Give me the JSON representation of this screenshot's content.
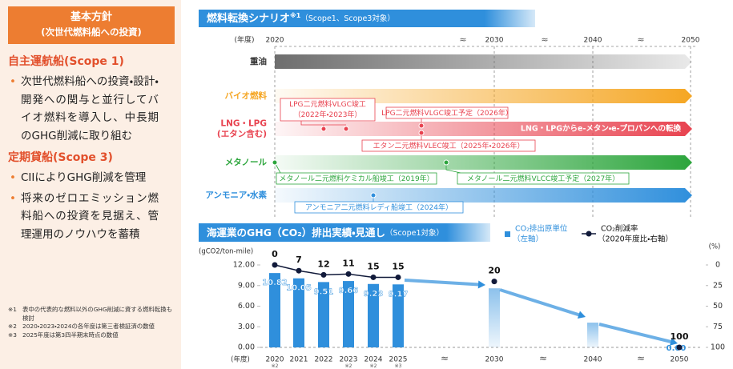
{
  "left": {
    "header": [
      "基本方針",
      "(次世代燃料船への投資)"
    ],
    "sections": [
      {
        "heading": "自主運航船(Scope 1)",
        "bullets": [
          "次世代燃料船への投資・設計・開発への関与と並行してバイオ燃料を導入し、中長期のGHG削減に取り組む"
        ]
      },
      {
        "heading": "定期貸船(Scope 3)",
        "bullets": [
          "CIIによりGHG削減を管理",
          "将来のゼロエミッション燃料船への投資を見据え、管理運用のノウハウを蓄積"
        ]
      }
    ],
    "notes": [
      [
        "※1",
        "表中の代表的な燃料以外のGHG削減に資する燃料転換も検討"
      ],
      [
        "※2",
        "2020・2023・2024の各年度は第三者検証済の数値"
      ],
      [
        "※3",
        "2025年度は第3四半期末時点の数値"
      ]
    ]
  },
  "scenario": {
    "title": "燃料転換シナリオ",
    "title_note": "※1",
    "subtitle": "（Scope1、Scope3対象）",
    "year_label": "(年度)",
    "years": [
      "2020",
      "2030",
      "2040",
      "2050"
    ],
    "rows": [
      {
        "label": [
          "重油"
        ],
        "color": "#6e6e6e"
      },
      {
        "label": [
          "バイオ燃料"
        ],
        "color": "#f5a623"
      },
      {
        "label": [
          "LNG・LPG",
          "(エタン含む)"
        ],
        "color": "#e8424f",
        "arrow_text": "LNG・LPGからe-メタン・e-プロパンへの転換"
      },
      {
        "label": [
          "メタノール"
        ],
        "color": "#2ca53c"
      },
      {
        "label": [
          "アンモニア・水素"
        ],
        "color": "#2f8fdc"
      }
    ],
    "annotations": [
      {
        "text": [
          "LPG二元燃料VLGC竣工",
          "（2022年・2023年）"
        ]
      },
      {
        "text": [
          "LPG二元燃料VLGC竣工予定（2026年）"
        ]
      },
      {
        "text": [
          "エタン二元燃料VLEC竣工（2025年・2026年）"
        ]
      },
      {
        "text": [
          "メタノール二元燃料ケミカル船竣工（2019年）"
        ]
      },
      {
        "text": [
          "メタノール二元燃料VLCC竣工予定（2027年）"
        ]
      },
      {
        "text": [
          "アンモニア二元燃料レディ船竣工（2024年）"
        ]
      }
    ]
  },
  "chart_data": {
    "type": "bar-line",
    "title": "海運業のGHG（CO₂）排出実績・見通し",
    "subtitle": "（Scope1対象）",
    "x_label": "(年度)",
    "y_label": "(gCO2/ton-mile)",
    "y2_label": "(%)",
    "categories": [
      "2020",
      "2021",
      "2022",
      "2023",
      "2024",
      "2025",
      "2030",
      "2040",
      "2050"
    ],
    "x_notes": [
      "※2",
      null,
      null,
      "※2",
      "※2",
      "※3",
      null,
      null,
      null
    ],
    "series": [
      {
        "name": "CO₂排出原単位",
        "legend_note": "（左軸）",
        "color": "#2f8fdc",
        "values": [
          10.82,
          10.05,
          9.51,
          9.66,
          9.23,
          9.17,
          8.6,
          3.6,
          0
        ],
        "value_labels": [
          "10.82",
          "10.05",
          "9.51",
          "9.66",
          "9.23",
          "9.17",
          null,
          null,
          "0.00"
        ]
      },
      {
        "name": "CO₂削減率",
        "legend_note": "（2020年度比・右軸）",
        "color": "#111a3a",
        "axis": "y2",
        "values": [
          0,
          7,
          12,
          11,
          15,
          15,
          20,
          null,
          100
        ]
      }
    ],
    "ylim": [
      0,
      12
    ],
    "yticks": [
      {
        "value": 0,
        "label": "0.00"
      },
      {
        "value": 3,
        "label": "3.00"
      },
      {
        "value": 6,
        "label": "6.00"
      },
      {
        "value": 9,
        "label": "9.00"
      },
      {
        "value": 12,
        "label": "12.00"
      }
    ],
    "y2lim": [
      0,
      100
    ],
    "y2_reversed": true,
    "y2ticks": [
      0,
      25,
      50,
      75,
      100
    ]
  }
}
